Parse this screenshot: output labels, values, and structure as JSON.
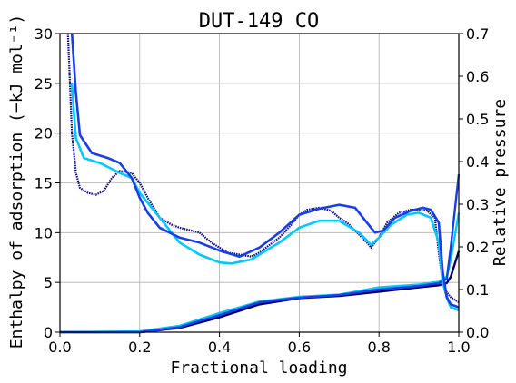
{
  "chart_data": {
    "type": "line",
    "title": "DUT-149 CO",
    "xlabel": "Fractional loading",
    "ylabel_left": "Enthalpy of adsorption (−kJ mol⁻¹)",
    "ylabel_right": "Relative pressure",
    "xlim": [
      0.0,
      1.0
    ],
    "ylim_left": [
      0,
      30
    ],
    "ylim_right": [
      0.0,
      0.7
    ],
    "x_ticks": [
      "0.0",
      "0.2",
      "0.4",
      "0.6",
      "0.8",
      "1.0"
    ],
    "y_left_ticks": [
      "0",
      "5",
      "10",
      "15",
      "20",
      "25",
      "30"
    ],
    "y_right_ticks": [
      "0.0",
      "0.1",
      "0.2",
      "0.3",
      "0.4",
      "0.5",
      "0.6",
      "0.7"
    ],
    "grid": true,
    "enthalpy_series": [
      {
        "color": "#0a0a82",
        "style": "dotted",
        "axis": "left",
        "points": [
          [
            0.02,
            30
          ],
          [
            0.025,
            25
          ],
          [
            0.03,
            20
          ],
          [
            0.04,
            16
          ],
          [
            0.05,
            14.5
          ],
          [
            0.07,
            14
          ],
          [
            0.09,
            13.8
          ],
          [
            0.11,
            14.2
          ],
          [
            0.13,
            15.5
          ],
          [
            0.15,
            16.2
          ],
          [
            0.18,
            16
          ],
          [
            0.2,
            15
          ],
          [
            0.22,
            13.5
          ],
          [
            0.25,
            11.5
          ],
          [
            0.28,
            10.8
          ],
          [
            0.3,
            10.5
          ],
          [
            0.35,
            10
          ],
          [
            0.38,
            9
          ],
          [
            0.4,
            8.5
          ],
          [
            0.42,
            8
          ],
          [
            0.45,
            7.8
          ],
          [
            0.48,
            7.6
          ],
          [
            0.5,
            8
          ],
          [
            0.55,
            9.5
          ],
          [
            0.58,
            10.8
          ],
          [
            0.6,
            11.8
          ],
          [
            0.62,
            12.3
          ],
          [
            0.65,
            12.5
          ],
          [
            0.68,
            12.2
          ],
          [
            0.7,
            11.5
          ],
          [
            0.72,
            11
          ],
          [
            0.75,
            9.8
          ],
          [
            0.77,
            9
          ],
          [
            0.78,
            8.5
          ],
          [
            0.8,
            9.5
          ],
          [
            0.82,
            11
          ],
          [
            0.85,
            12
          ],
          [
            0.88,
            12.3
          ],
          [
            0.9,
            12.3
          ],
          [
            0.92,
            12.2
          ],
          [
            0.94,
            11.5
          ],
          [
            0.95,
            8
          ],
          [
            0.96,
            5
          ],
          [
            0.97,
            4
          ],
          [
            0.98,
            3.5
          ],
          [
            1.0,
            3
          ]
        ]
      },
      {
        "color": "#00c8ff",
        "style": "solid",
        "axis": "left",
        "points": [
          [
            0.03,
            25
          ],
          [
            0.035,
            22
          ],
          [
            0.04,
            19.5
          ],
          [
            0.06,
            17.5
          ],
          [
            0.1,
            17
          ],
          [
            0.15,
            16
          ],
          [
            0.18,
            15.5
          ],
          [
            0.2,
            14
          ],
          [
            0.22,
            13
          ],
          [
            0.25,
            11.5
          ],
          [
            0.28,
            10
          ],
          [
            0.3,
            9
          ],
          [
            0.35,
            7.8
          ],
          [
            0.4,
            7
          ],
          [
            0.43,
            6.9
          ],
          [
            0.48,
            7.3
          ],
          [
            0.5,
            7.8
          ],
          [
            0.55,
            9
          ],
          [
            0.6,
            10.5
          ],
          [
            0.65,
            11.2
          ],
          [
            0.7,
            11.2
          ],
          [
            0.75,
            10
          ],
          [
            0.78,
            8.8
          ],
          [
            0.8,
            9.5
          ],
          [
            0.83,
            10.8
          ],
          [
            0.87,
            11.8
          ],
          [
            0.9,
            12
          ],
          [
            0.93,
            11.5
          ],
          [
            0.95,
            9
          ],
          [
            0.96,
            5
          ],
          [
            0.97,
            3.5
          ],
          [
            0.98,
            2.5
          ],
          [
            1.0,
            2.2
          ]
        ]
      },
      {
        "color": "#1a3ee6",
        "style": "solid",
        "axis": "left",
        "points": [
          [
            0.03,
            30
          ],
          [
            0.04,
            24
          ],
          [
            0.05,
            19.8
          ],
          [
            0.08,
            18
          ],
          [
            0.12,
            17.5
          ],
          [
            0.15,
            17
          ],
          [
            0.18,
            15.5
          ],
          [
            0.2,
            13.5
          ],
          [
            0.22,
            12
          ],
          [
            0.25,
            10.5
          ],
          [
            0.3,
            9.5
          ],
          [
            0.35,
            9
          ],
          [
            0.4,
            8.2
          ],
          [
            0.45,
            7.6
          ],
          [
            0.5,
            8.5
          ],
          [
            0.55,
            10
          ],
          [
            0.6,
            11.8
          ],
          [
            0.65,
            12.4
          ],
          [
            0.7,
            12.8
          ],
          [
            0.74,
            12.5
          ],
          [
            0.77,
            11
          ],
          [
            0.79,
            10
          ],
          [
            0.81,
            10.2
          ],
          [
            0.84,
            11.5
          ],
          [
            0.88,
            12.2
          ],
          [
            0.91,
            12.5
          ],
          [
            0.93,
            12.3
          ],
          [
            0.95,
            11
          ],
          [
            0.96,
            6
          ],
          [
            0.97,
            3.5
          ],
          [
            0.98,
            2.8
          ],
          [
            1.0,
            2.5
          ]
        ]
      }
    ],
    "pressure_series": [
      {
        "color": "#000066",
        "axis": "right",
        "points": [
          [
            0.0,
            0.0
          ],
          [
            0.2,
            0.0
          ],
          [
            0.3,
            0.01
          ],
          [
            0.4,
            0.035
          ],
          [
            0.5,
            0.065
          ],
          [
            0.6,
            0.08
          ],
          [
            0.7,
            0.085
          ],
          [
            0.8,
            0.095
          ],
          [
            0.9,
            0.105
          ],
          [
            0.95,
            0.11
          ],
          [
            0.97,
            0.115
          ],
          [
            0.98,
            0.13
          ],
          [
            1.0,
            0.19
          ]
        ]
      },
      {
        "color": "#00c8ff",
        "axis": "right",
        "points": [
          [
            0.0,
            0.0
          ],
          [
            0.2,
            0.002
          ],
          [
            0.3,
            0.015
          ],
          [
            0.4,
            0.045
          ],
          [
            0.5,
            0.072
          ],
          [
            0.6,
            0.083
          ],
          [
            0.7,
            0.088
          ],
          [
            0.8,
            0.105
          ],
          [
            0.9,
            0.112
          ],
          [
            0.95,
            0.118
          ],
          [
            0.97,
            0.13
          ],
          [
            0.98,
            0.17
          ],
          [
            1.0,
            0.28
          ]
        ]
      },
      {
        "color": "#1a3ee6",
        "axis": "right",
        "points": [
          [
            0.0,
            0.0
          ],
          [
            0.2,
            0.0
          ],
          [
            0.3,
            0.012
          ],
          [
            0.4,
            0.04
          ],
          [
            0.5,
            0.07
          ],
          [
            0.6,
            0.081
          ],
          [
            0.7,
            0.087
          ],
          [
            0.8,
            0.1
          ],
          [
            0.9,
            0.108
          ],
          [
            0.95,
            0.115
          ],
          [
            0.97,
            0.125
          ],
          [
            0.98,
            0.2
          ],
          [
            1.0,
            0.37
          ]
        ]
      }
    ]
  }
}
